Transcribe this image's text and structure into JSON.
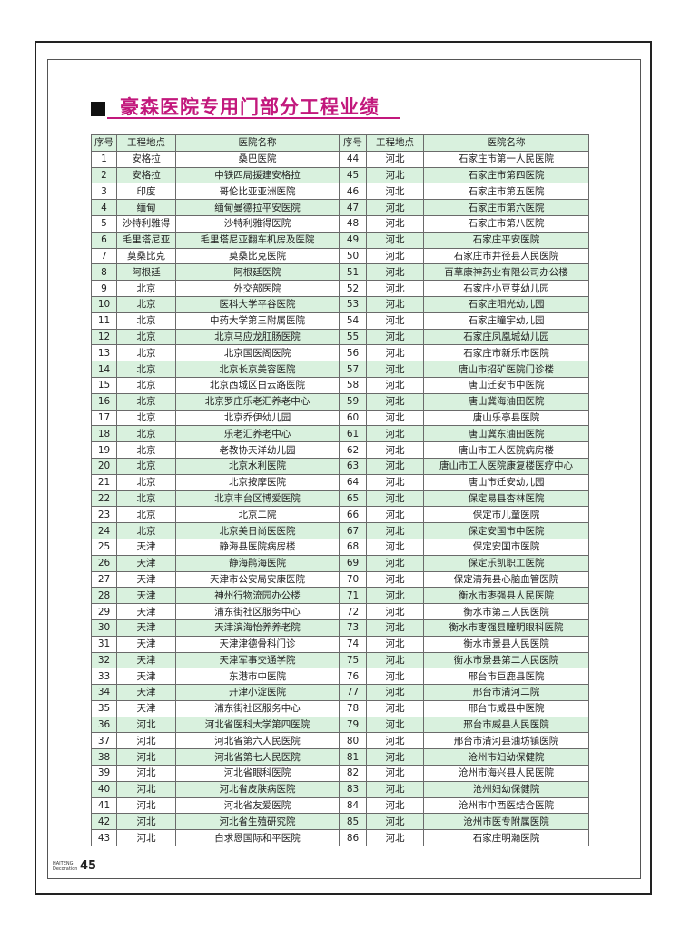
{
  "header": {
    "title": "豪森医院专用门部分工程业绩"
  },
  "table": {
    "headers": [
      "序号",
      "工程地点",
      "医院名称",
      "序号",
      "工程地点",
      "医院名称"
    ],
    "rows": [
      [
        "1",
        "安格拉",
        "桑巴医院",
        "44",
        "河北",
        "石家庄市第一人民医院"
      ],
      [
        "2",
        "安格拉",
        "中铁四局援建安格拉",
        "45",
        "河北",
        "石家庄市第四医院"
      ],
      [
        "3",
        "印度",
        "哥伦比亚亚洲医院",
        "46",
        "河北",
        "石家庄市第五医院"
      ],
      [
        "4",
        "缅甸",
        "缅甸曼德拉平安医院",
        "47",
        "河北",
        "石家庄市第六医院"
      ],
      [
        "5",
        "沙特利雅得",
        "沙特利雅得医院",
        "48",
        "河北",
        "石家庄市第八医院"
      ],
      [
        "6",
        "毛里塔尼亚",
        "毛里塔尼亚翻车机房及医院",
        "49",
        "河北",
        "石家庄平安医院"
      ],
      [
        "7",
        "莫桑比克",
        "莫桑比克医院",
        "50",
        "河北",
        "石家庄市井径县人民医院"
      ],
      [
        "8",
        "阿根廷",
        "阿根廷医院",
        "51",
        "河北",
        "百草康神药业有限公司办公楼"
      ],
      [
        "9",
        "北京",
        "外交部医院",
        "52",
        "河北",
        "石家庄小豆芽幼儿园"
      ],
      [
        "10",
        "北京",
        "医科大学平谷医院",
        "53",
        "河北",
        "石家庄阳光幼儿园"
      ],
      [
        "11",
        "北京",
        "中药大学第三附属医院",
        "54",
        "河北",
        "石家庄瞳宇幼儿园"
      ],
      [
        "12",
        "北京",
        "北京马应龙肛肠医院",
        "55",
        "河北",
        "石家庄凤凰城幼儿园"
      ],
      [
        "13",
        "北京",
        "北京国医阁医院",
        "56",
        "河北",
        "石家庄市新乐市医院"
      ],
      [
        "14",
        "北京",
        "北京长京美容医院",
        "57",
        "河北",
        "唐山市招矿医院门诊楼"
      ],
      [
        "15",
        "北京",
        "北京西城区白云路医院",
        "58",
        "河北",
        "唐山迁安市中医院"
      ],
      [
        "16",
        "北京",
        "北京罗庄乐老汇养老中心",
        "59",
        "河北",
        "唐山冀海油田医院"
      ],
      [
        "17",
        "北京",
        "北京乔伊幼儿园",
        "60",
        "河北",
        "唐山乐亭县医院"
      ],
      [
        "18",
        "北京",
        "乐老汇养老中心",
        "61",
        "河北",
        "唐山冀东油田医院"
      ],
      [
        "19",
        "北京",
        "老教协天洋幼儿园",
        "62",
        "河北",
        "唐山市工人医院病房楼"
      ],
      [
        "20",
        "北京",
        "北京水利医院",
        "63",
        "河北",
        "唐山市工人医院康复楼医疗中心"
      ],
      [
        "21",
        "北京",
        "北京按摩医院",
        "64",
        "河北",
        "唐山市迁安幼儿园"
      ],
      [
        "22",
        "北京",
        "北京丰台区博爱医院",
        "65",
        "河北",
        "保定易县杏林医院"
      ],
      [
        "23",
        "北京",
        "北京二院",
        "66",
        "河北",
        "保定市儿童医院"
      ],
      [
        "24",
        "北京",
        "北京美日尚医医院",
        "67",
        "河北",
        "保定安国市中医院"
      ],
      [
        "25",
        "天津",
        "静海县医院病房楼",
        "68",
        "河北",
        "保定安国市医院"
      ],
      [
        "26",
        "天津",
        "静海鹃海医院",
        "69",
        "河北",
        "保定乐凯职工医院"
      ],
      [
        "27",
        "天津",
        "天津市公安局安康医院",
        "70",
        "河北",
        "保定清苑县心脑血管医院"
      ],
      [
        "28",
        "天津",
        "神州行物流园办公楼",
        "71",
        "河北",
        "衡水市枣强县人民医院"
      ],
      [
        "29",
        "天津",
        "浦东街社区服务中心",
        "72",
        "河北",
        "衡水市第三人民医院"
      ],
      [
        "30",
        "天津",
        "天津滨海怡养养老院",
        "73",
        "河北",
        "衡水市枣强县瞳明眼科医院"
      ],
      [
        "31",
        "天津",
        "天津津德骨科门诊",
        "74",
        "河北",
        "衡水市景县人民医院"
      ],
      [
        "32",
        "天津",
        "天津军事交通学院",
        "75",
        "河北",
        "衡水市景县第二人民医院"
      ],
      [
        "33",
        "天津",
        "东港市中医院",
        "76",
        "河北",
        "邢台市巨鹿县医院"
      ],
      [
        "34",
        "天津",
        "开津小淀医院",
        "77",
        "河北",
        "邢台市清河二院"
      ],
      [
        "35",
        "天津",
        "浦东街社区服务中心",
        "78",
        "河北",
        "邢台市威县中医院"
      ],
      [
        "36",
        "河北",
        "河北省医科大学第四医院",
        "79",
        "河北",
        "邢台市威县人民医院"
      ],
      [
        "37",
        "河北",
        "河北省第六人民医院",
        "80",
        "河北",
        "邢台市清河县油坊镇医院"
      ],
      [
        "38",
        "河北",
        "河北省第七人民医院",
        "81",
        "河北",
        "沧州市妇幼保健院"
      ],
      [
        "39",
        "河北",
        "河北省眼科医院",
        "82",
        "河北",
        "沧州市海兴县人民医院"
      ],
      [
        "40",
        "河北",
        "河北省皮肤病医院",
        "83",
        "河北",
        "沧州妇幼保健院"
      ],
      [
        "41",
        "河北",
        "河北省友爱医院",
        "84",
        "河北",
        "沧州市中西医结合医院"
      ],
      [
        "42",
        "河北",
        "河北省生殖研究院",
        "85",
        "河北",
        "沧州市医专附属医院"
      ],
      [
        "43",
        "河北",
        "白求恩国际和平医院",
        "86",
        "河北",
        "石家庄明瀚医院"
      ]
    ]
  },
  "footer": {
    "brand": "HAITENG Decoration",
    "page": "45"
  }
}
